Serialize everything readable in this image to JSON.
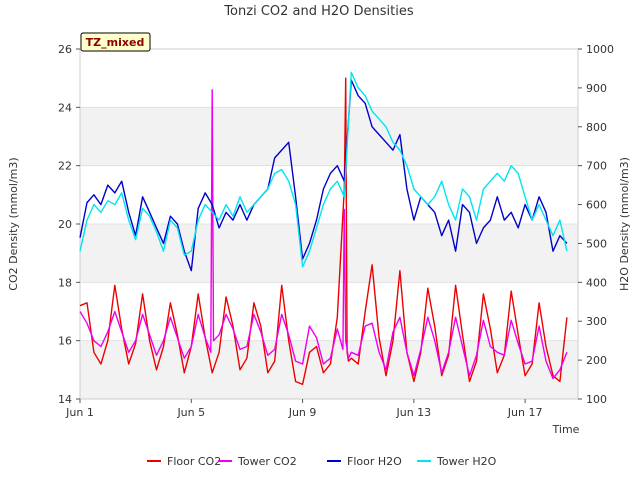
{
  "chart_data": {
    "type": "line",
    "title": "Tonzi CO2 and H2O Densities",
    "badge": "TZ_mixed",
    "xlabel": "Time",
    "ylabel_left": "CO2 Density (mmol/m3)",
    "ylabel_right": "H2O Density (mmol/m3)",
    "x_unit": "day of June",
    "xlim": [
      1,
      18.9
    ],
    "ylim_left": [
      14,
      26
    ],
    "ylim_right": [
      100,
      1000
    ],
    "xticks": [
      {
        "value": 1,
        "label": "Jun 1"
      },
      {
        "value": 5,
        "label": "Jun 5"
      },
      {
        "value": 9,
        "label": "Jun 9"
      },
      {
        "value": 13,
        "label": "Jun 13"
      },
      {
        "value": 17,
        "label": "Jun 17"
      }
    ],
    "yticks_left": [
      14,
      16,
      18,
      20,
      22,
      24,
      26
    ],
    "yticks_right": [
      100,
      200,
      300,
      400,
      500,
      600,
      700,
      800,
      900,
      1000
    ],
    "grid_bands": true,
    "legend_position": "bottom",
    "series": [
      {
        "name": "Floor CO2",
        "axis": "left",
        "color": "#ee0000",
        "x": [
          1.0,
          1.25,
          1.5,
          1.75,
          2.0,
          2.25,
          2.5,
          2.75,
          3.0,
          3.25,
          3.5,
          3.75,
          4.0,
          4.25,
          4.5,
          4.75,
          5.0,
          5.25,
          5.5,
          5.75,
          6.0,
          6.25,
          6.5,
          6.75,
          7.0,
          7.25,
          7.5,
          7.75,
          8.0,
          8.25,
          8.5,
          8.75,
          9.0,
          9.25,
          9.5,
          9.75,
          10.0,
          10.25,
          10.5,
          10.55,
          10.6,
          10.65,
          10.75,
          11.0,
          11.25,
          11.5,
          11.75,
          12.0,
          12.25,
          12.5,
          12.75,
          13.0,
          13.25,
          13.5,
          13.75,
          14.0,
          14.25,
          14.5,
          14.75,
          15.0,
          15.25,
          15.5,
          15.75,
          16.0,
          16.25,
          16.5,
          16.75,
          17.0,
          17.25,
          17.5,
          17.75,
          18.0,
          18.25,
          18.5
        ],
        "y": [
          17.2,
          17.3,
          15.6,
          15.2,
          16.0,
          17.9,
          16.4,
          15.2,
          15.9,
          17.6,
          16.0,
          15.0,
          15.8,
          17.3,
          16.2,
          14.9,
          15.8,
          17.6,
          16.1,
          14.9,
          15.6,
          17.5,
          16.5,
          15.0,
          15.4,
          17.3,
          16.5,
          14.9,
          15.3,
          17.9,
          16.0,
          14.6,
          14.5,
          15.6,
          15.8,
          14.9,
          15.2,
          16.8,
          21.2,
          25.0,
          15.6,
          15.3,
          15.4,
          15.2,
          17.0,
          18.6,
          16.1,
          14.8,
          16.0,
          18.4,
          15.6,
          14.6,
          15.6,
          17.8,
          16.5,
          14.8,
          15.5,
          17.9,
          16.2,
          14.6,
          15.3,
          17.6,
          16.4,
          14.9,
          15.5,
          17.7,
          16.2,
          14.8,
          15.2,
          17.3,
          15.8,
          14.8,
          14.6,
          16.8
        ]
      },
      {
        "name": "Tower CO2",
        "axis": "left",
        "color": "#ee00ee",
        "x": [
          1.0,
          1.25,
          1.5,
          1.75,
          2.0,
          2.25,
          2.5,
          2.75,
          3.0,
          3.25,
          3.5,
          3.75,
          4.0,
          4.25,
          4.5,
          4.75,
          5.0,
          5.25,
          5.5,
          5.7,
          5.75,
          5.8,
          6.0,
          6.25,
          6.5,
          6.75,
          7.0,
          7.25,
          7.5,
          7.75,
          8.0,
          8.25,
          8.5,
          8.75,
          9.0,
          9.25,
          9.5,
          9.75,
          10.0,
          10.25,
          10.45,
          10.5,
          10.55,
          10.65,
          10.75,
          11.0,
          11.25,
          11.5,
          11.75,
          12.0,
          12.25,
          12.5,
          12.75,
          13.0,
          13.25,
          13.5,
          13.75,
          14.0,
          14.25,
          14.5,
          14.75,
          15.0,
          15.25,
          15.5,
          15.75,
          16.0,
          16.25,
          16.5,
          16.75,
          17.0,
          17.25,
          17.5,
          17.75,
          18.0,
          18.25,
          18.5
        ],
        "y": [
          17.0,
          16.6,
          16.0,
          15.8,
          16.3,
          17.0,
          16.3,
          15.6,
          16.0,
          16.9,
          16.2,
          15.5,
          16.0,
          16.8,
          16.1,
          15.4,
          15.8,
          16.9,
          16.1,
          15.6,
          24.6,
          16.0,
          16.2,
          16.9,
          16.4,
          15.7,
          15.8,
          16.9,
          16.3,
          15.5,
          15.7,
          16.9,
          16.2,
          15.3,
          15.2,
          16.5,
          16.1,
          15.2,
          15.4,
          16.4,
          15.7,
          20.5,
          16.0,
          15.4,
          15.6,
          15.5,
          16.5,
          16.6,
          15.6,
          15.0,
          16.3,
          16.8,
          15.6,
          14.8,
          15.7,
          16.8,
          16.0,
          14.9,
          15.6,
          16.8,
          15.8,
          14.8,
          15.5,
          16.7,
          15.8,
          15.6,
          15.5,
          16.7,
          15.9,
          15.2,
          15.3,
          16.5,
          15.3,
          14.7,
          15.0,
          15.6
        ]
      },
      {
        "name": "Floor H2O",
        "axis": "right",
        "color": "#0000cc",
        "x": [
          1.0,
          1.25,
          1.5,
          1.75,
          2.0,
          2.25,
          2.5,
          2.75,
          3.0,
          3.25,
          3.5,
          3.75,
          4.0,
          4.25,
          4.5,
          4.75,
          5.0,
          5.25,
          5.5,
          5.75,
          6.0,
          6.25,
          6.5,
          6.75,
          7.0,
          7.25,
          7.5,
          7.75,
          8.0,
          8.25,
          8.5,
          8.75,
          9.0,
          9.25,
          9.5,
          9.75,
          10.0,
          10.25,
          10.5,
          10.75,
          11.0,
          11.25,
          11.5,
          11.75,
          12.0,
          12.25,
          12.5,
          12.75,
          13.0,
          13.25,
          13.5,
          13.75,
          14.0,
          14.25,
          14.5,
          14.75,
          15.0,
          15.25,
          15.5,
          15.75,
          16.0,
          16.25,
          16.5,
          16.75,
          17.0,
          17.25,
          17.5,
          17.75,
          18.0,
          18.25,
          18.5
        ],
        "y": [
          515,
          605,
          625,
          600,
          650,
          630,
          660,
          580,
          520,
          620,
          580,
          540,
          500,
          570,
          550,
          480,
          430,
          590,
          630,
          600,
          540,
          580,
          560,
          600,
          560,
          600,
          620,
          640,
          720,
          740,
          760,
          620,
          460,
          500,
          560,
          640,
          680,
          700,
          660,
          920,
          880,
          860,
          800,
          780,
          760,
          740,
          780,
          640,
          560,
          620,
          600,
          580,
          520,
          560,
          480,
          600,
          580,
          500,
          540,
          560,
          620,
          560,
          580,
          540,
          600,
          560,
          620,
          580,
          480,
          520,
          500
        ]
      },
      {
        "name": "Tower H2O",
        "axis": "right",
        "color": "#00e5ee",
        "x": [
          1.0,
          1.25,
          1.5,
          1.75,
          2.0,
          2.25,
          2.5,
          2.75,
          3.0,
          3.25,
          3.5,
          3.75,
          4.0,
          4.25,
          4.5,
          4.75,
          5.0,
          5.25,
          5.5,
          5.75,
          6.0,
          6.25,
          6.5,
          6.75,
          7.0,
          7.25,
          7.5,
          7.75,
          8.0,
          8.25,
          8.5,
          8.75,
          9.0,
          9.25,
          9.5,
          9.75,
          10.0,
          10.25,
          10.5,
          10.75,
          11.0,
          11.25,
          11.5,
          11.75,
          12.0,
          12.25,
          12.5,
          12.75,
          13.0,
          13.25,
          13.5,
          13.75,
          14.0,
          14.25,
          14.5,
          14.75,
          15.0,
          15.25,
          15.5,
          15.75,
          16.0,
          16.25,
          16.5,
          16.75,
          17.0,
          17.25,
          17.5,
          17.75,
          18.0,
          18.25,
          18.5
        ],
        "y": [
          480,
          560,
          600,
          580,
          610,
          600,
          630,
          560,
          510,
          590,
          570,
          530,
          480,
          560,
          540,
          470,
          480,
          560,
          600,
          580,
          560,
          600,
          570,
          620,
          580,
          600,
          620,
          640,
          680,
          690,
          660,
          600,
          440,
          480,
          540,
          600,
          640,
          660,
          620,
          940,
          900,
          880,
          840,
          820,
          800,
          760,
          740,
          700,
          640,
          620,
          600,
          620,
          660,
          600,
          560,
          640,
          620,
          560,
          640,
          660,
          680,
          660,
          700,
          680,
          620,
          560,
          600,
          560,
          520,
          560,
          480
        ]
      }
    ]
  }
}
